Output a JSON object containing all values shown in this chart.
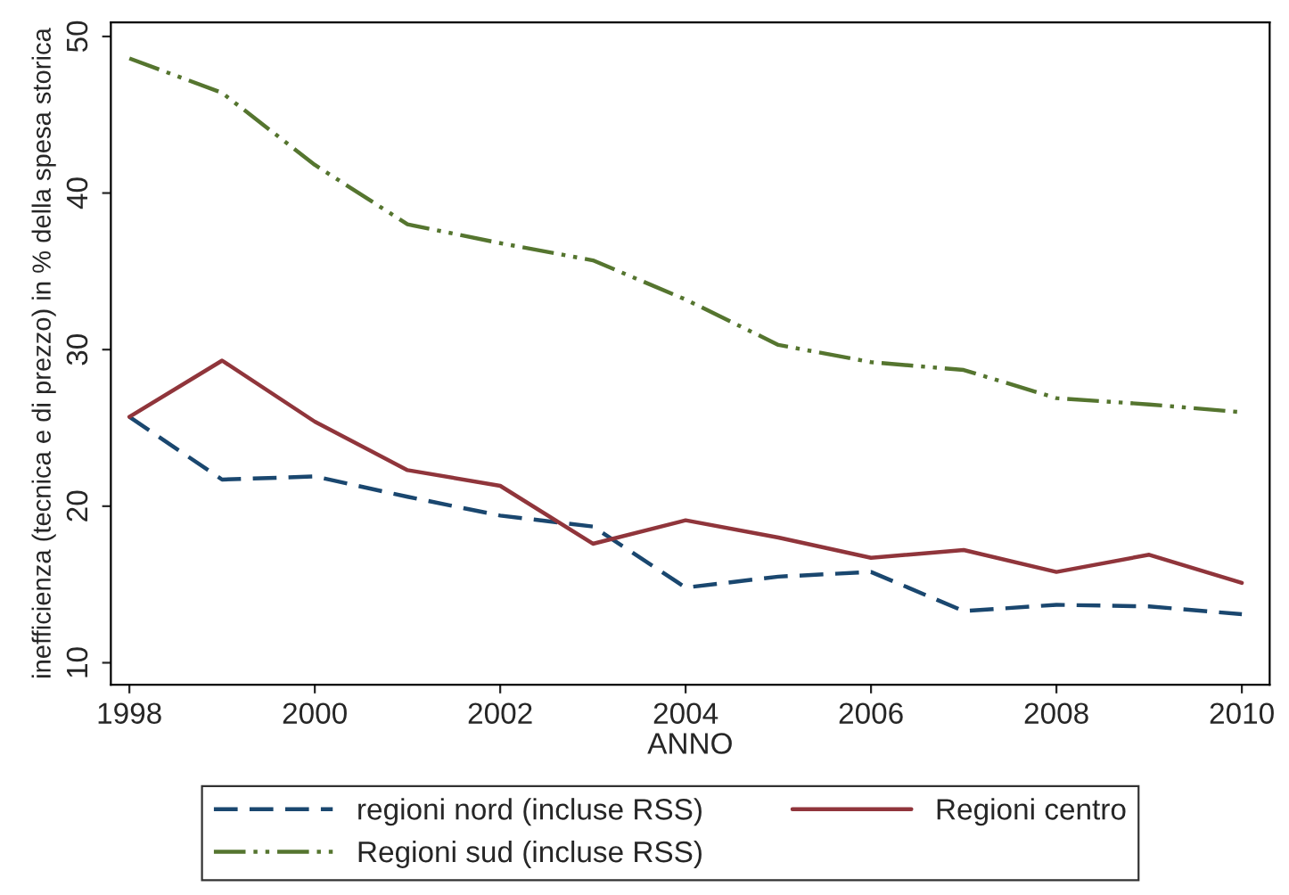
{
  "chart_data": {
    "type": "line",
    "xlabel": "ANNO",
    "ylabel": "inefficienza (tecnica e di prezzo) in % della spesa storica",
    "x": [
      1998,
      1999,
      2000,
      2001,
      2002,
      2003,
      2004,
      2005,
      2006,
      2007,
      2008,
      2009,
      2010
    ],
    "series": [
      {
        "name": "regioni nord (incluse RSS)",
        "color": "#1a476f",
        "line_style": "dashed",
        "values": [
          25.7,
          21.7,
          21.9,
          20.6,
          19.4,
          18.7,
          14.8,
          15.5,
          15.8,
          13.3,
          13.7,
          13.6,
          13.1
        ]
      },
      {
        "name": "Regioni centro",
        "color": "#90353b",
        "line_style": "solid",
        "values": [
          25.7,
          29.3,
          25.4,
          22.3,
          21.3,
          17.6,
          19.1,
          18.0,
          16.7,
          17.2,
          15.8,
          16.9,
          15.1
        ]
      },
      {
        "name": "Regioni sud (incluse RSS)",
        "color": "#55752f",
        "line_style": "dashdot",
        "values": [
          48.6,
          46.4,
          41.8,
          38.0,
          36.8,
          35.7,
          33.2,
          30.3,
          29.2,
          28.7,
          26.9,
          26.5,
          26.0
        ]
      }
    ],
    "xlim": [
      1997.8,
      2010.3
    ],
    "ylim": [
      8.6,
      50.9
    ],
    "xticks": [
      1998,
      2000,
      2002,
      2004,
      2006,
      2008,
      2010
    ],
    "yticks": [
      10,
      20,
      30,
      40,
      50
    ],
    "grid": false,
    "legend": "bottom",
    "marker": "none"
  }
}
